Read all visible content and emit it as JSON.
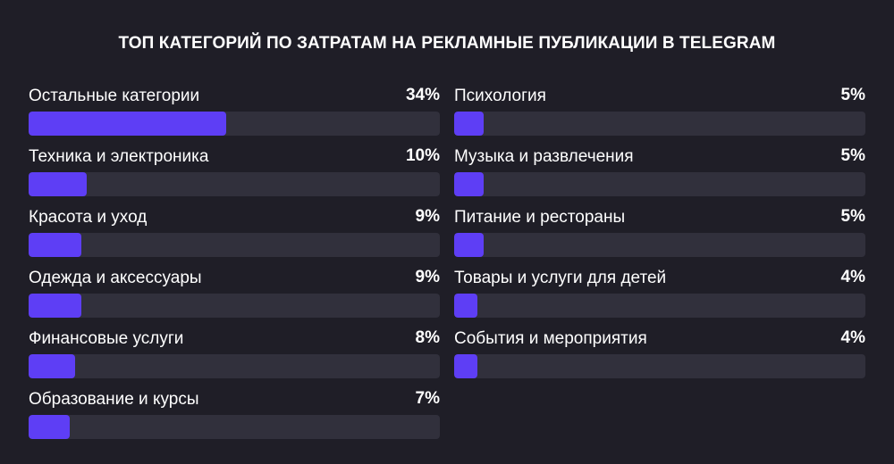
{
  "chart_data": {
    "type": "bar",
    "orientation": "horizontal",
    "title": "ТОП КАТЕГОРИЙ ПО ЗАТРАТАМ НА РЕКЛАМНЫЕ ПУБЛИКАЦИИ В TELEGRAM",
    "xlabel": "",
    "ylabel": "",
    "grid": false,
    "legend": "none",
    "colors": {
      "background": "#1f1e27",
      "track": "#31303c",
      "bar": "#5e3ef5",
      "text": "#ffffff"
    },
    "columns": [
      [
        {
          "category": "Остальные категории",
          "value": 34,
          "label": "34%"
        },
        {
          "category": "Техника и электроника",
          "value": 10,
          "label": "10%"
        },
        {
          "category": "Красота и уход",
          "value": 9,
          "label": "9%"
        },
        {
          "category": "Одежда и аксессуары",
          "value": 9,
          "label": "9%"
        },
        {
          "category": "Финансовые услуги",
          "value": 8,
          "label": "8%"
        },
        {
          "category": "Образование и курсы",
          "value": 7,
          "label": "7%"
        }
      ],
      [
        {
          "category": "Психология",
          "value": 5,
          "label": "5%"
        },
        {
          "category": "Музыка и развлечения",
          "value": 5,
          "label": "5%"
        },
        {
          "category": "Питание и рестораны",
          "value": 5,
          "label": "5%"
        },
        {
          "category": "Товары и услуги для детей",
          "value": 4,
          "label": "4%"
        },
        {
          "category": "События и мероприятия",
          "value": 4,
          "label": "4%"
        }
      ]
    ]
  }
}
